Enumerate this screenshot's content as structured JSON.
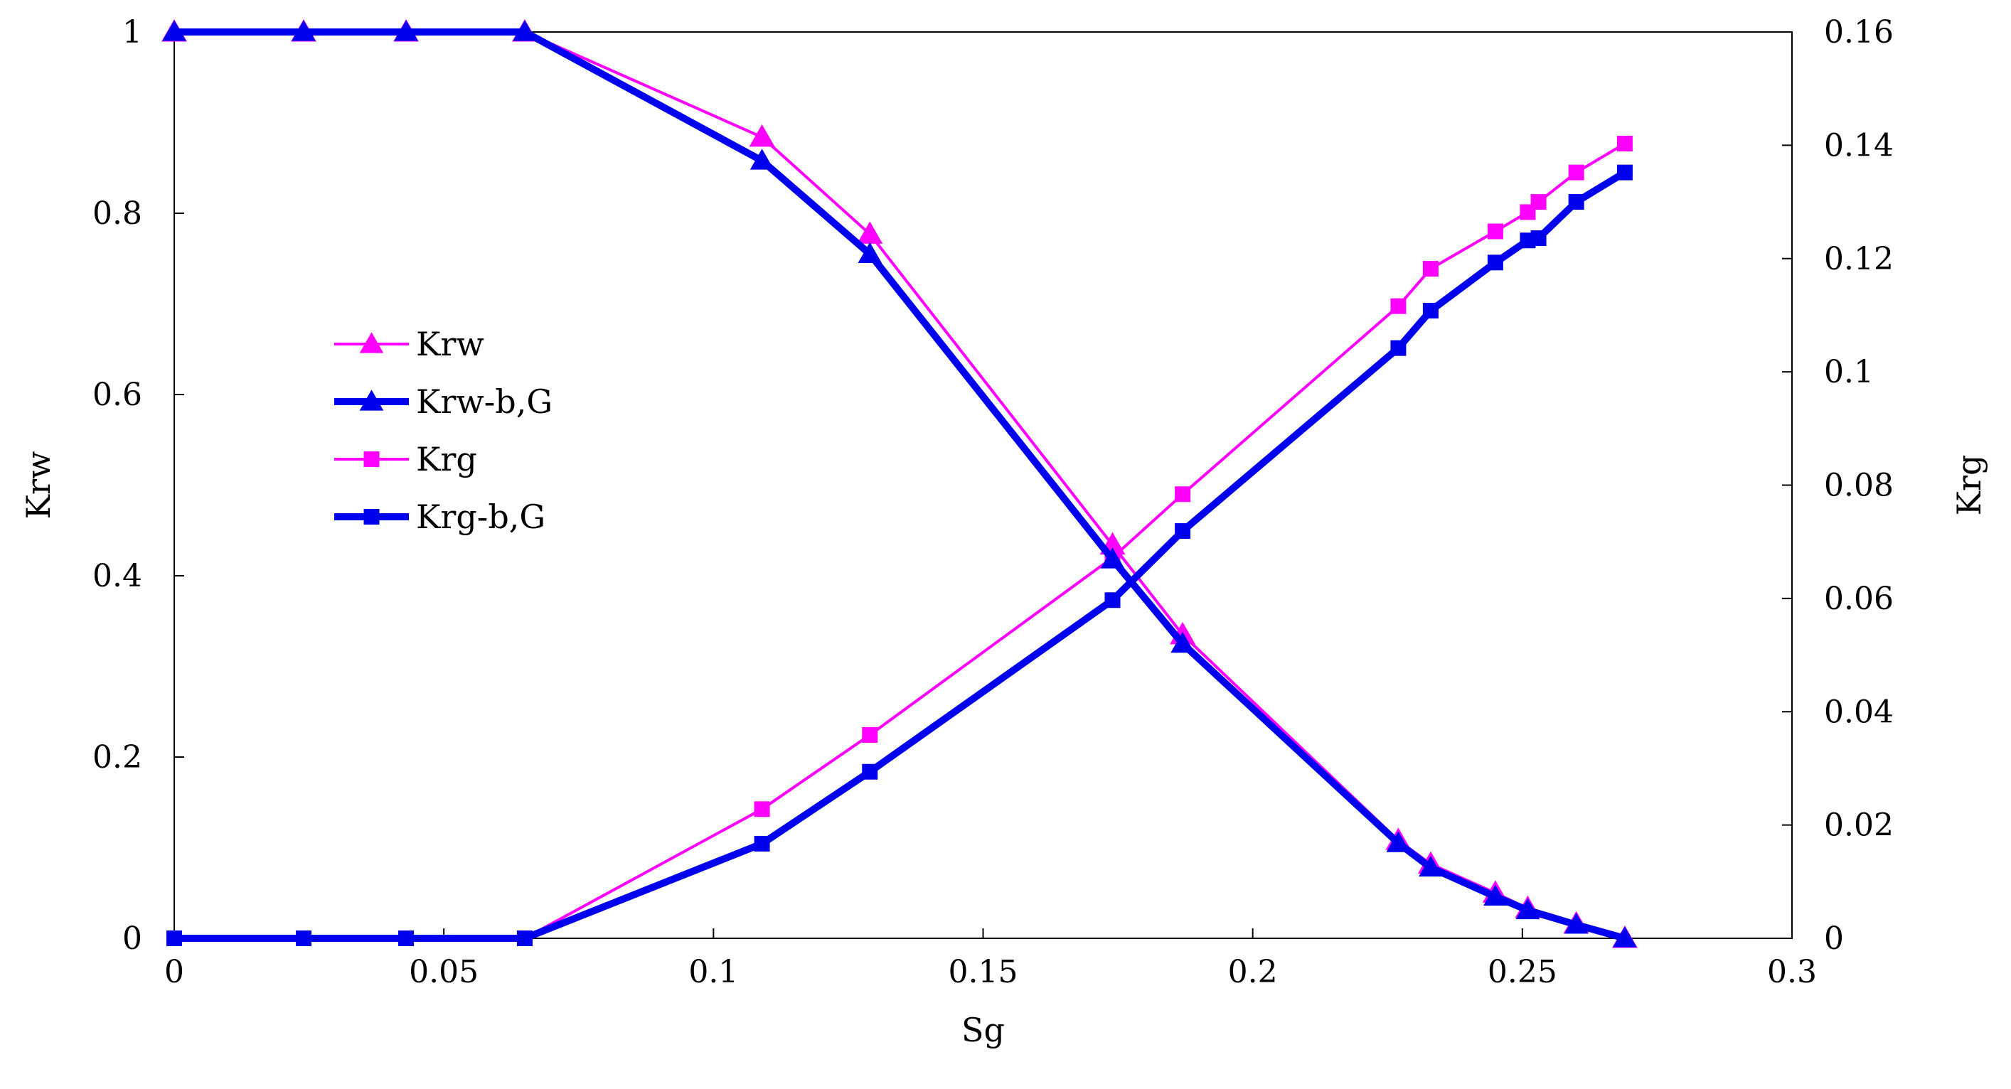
{
  "chart_data": {
    "type": "line",
    "xlabel": "Sg",
    "ylabel": "Krw",
    "y2label": "Krg",
    "xlim": [
      0,
      0.3
    ],
    "ylim": [
      0,
      1
    ],
    "y2lim": [
      0,
      0.16
    ],
    "x_ticks": [
      0,
      0.05,
      0.1,
      0.15,
      0.2,
      0.25,
      0.3
    ],
    "x_tick_labels": [
      "0",
      "0.05",
      "0.1",
      "0.15",
      "0.2",
      "0.25",
      "0.3"
    ],
    "y_ticks": [
      0,
      0.2,
      0.4,
      0.6,
      0.8,
      1
    ],
    "y_tick_labels": [
      "0",
      "0.2",
      "0.4",
      "0.6",
      "0.8",
      "1"
    ],
    "y2_ticks": [
      0,
      0.02,
      0.04,
      0.06,
      0.08,
      0.1,
      0.12,
      0.14,
      0.16
    ],
    "y2_tick_labels": [
      "0",
      "0.02",
      "0.04",
      "0.06",
      "0.08",
      "0.1",
      "0.12",
      "0.14",
      "0.16"
    ],
    "grid": false,
    "legend_position": "left-center",
    "series": [
      {
        "name": "Krw",
        "axis": "left",
        "marker": "triangle",
        "color": "#ff00ff",
        "weight": "thin",
        "x": [
          0,
          0.024,
          0.043,
          0.065,
          0.109,
          0.129,
          0.174,
          0.187,
          0.227,
          0.233,
          0.245,
          0.251,
          0.26,
          0.269
        ],
        "y": [
          1,
          1,
          1,
          1,
          0.884,
          0.777,
          0.434,
          0.335,
          0.108,
          0.082,
          0.05,
          0.033,
          0.016,
          0
        ]
      },
      {
        "name": "Krw-b,G",
        "axis": "left",
        "marker": "triangle",
        "color": "#0000ee",
        "weight": "thick",
        "x": [
          0,
          0.024,
          0.043,
          0.065,
          0.109,
          0.129,
          0.174,
          0.187,
          0.227,
          0.233,
          0.245,
          0.251,
          0.26,
          0.269
        ],
        "y": [
          1,
          1,
          1,
          1,
          0.858,
          0.755,
          0.418,
          0.325,
          0.105,
          0.078,
          0.046,
          0.031,
          0.015,
          0
        ]
      },
      {
        "name": "Krg",
        "axis": "right",
        "marker": "square",
        "color": "#ff00ff",
        "weight": "thin",
        "x": [
          0,
          0.024,
          0.043,
          0.065,
          0.109,
          0.129,
          0.174,
          0.187,
          0.227,
          0.233,
          0.245,
          0.251,
          0.253,
          0.26,
          0.269
        ],
        "y": [
          0,
          0,
          0,
          0,
          0.0228,
          0.0359,
          0.0672,
          0.0784,
          0.1116,
          0.1182,
          0.1248,
          0.1282,
          0.13,
          0.1352,
          0.1403
        ]
      },
      {
        "name": "Krg-b,G",
        "axis": "right",
        "marker": "square",
        "color": "#0000ee",
        "weight": "thick",
        "x": [
          0,
          0.024,
          0.043,
          0.065,
          0.109,
          0.129,
          0.174,
          0.187,
          0.227,
          0.233,
          0.245,
          0.251,
          0.253,
          0.26,
          0.269
        ],
        "y": [
          0,
          0,
          0,
          0,
          0.0167,
          0.0294,
          0.0597,
          0.0719,
          0.1042,
          0.1108,
          0.1193,
          0.1232,
          0.1236,
          0.13,
          0.1352
        ]
      }
    ]
  }
}
